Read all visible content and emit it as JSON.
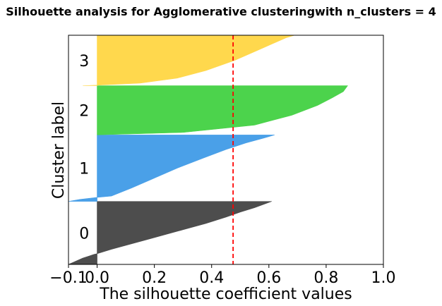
{
  "chart_data": {
    "type": "area",
    "title": "Silhouette analysis for Agglomerative clusteringwith n_clusters = 4",
    "xlabel": "The silhouette coefficient values",
    "ylabel": "Cluster label",
    "xlim": [
      -0.1,
      1.0
    ],
    "ylim": [
      0,
      1000
    ],
    "xticks": [
      -0.1,
      0.0,
      0.2,
      0.4,
      0.6,
      0.8,
      1.0
    ],
    "xtick_labels": [
      "−0.1",
      "0.0",
      "0.2",
      "0.4",
      "0.6",
      "0.8",
      "1.0"
    ],
    "yticks": [],
    "grid": false,
    "legend": "none",
    "average_silhouette": 0.475,
    "average_line_color": "#ff0000",
    "clusters": [
      {
        "label": "0",
        "color": "#4d4d4d",
        "y_start": 0,
        "y_end": 275,
        "profile": [
          [
            0,
            -0.1
          ],
          [
            0.1,
            -0.05
          ],
          [
            0.16,
            -0.01
          ],
          [
            0.17,
            0.0
          ],
          [
            0.24,
            0.05
          ],
          [
            0.4,
            0.18
          ],
          [
            0.55,
            0.3
          ],
          [
            0.65,
            0.38
          ],
          [
            0.75,
            0.45
          ],
          [
            0.83,
            0.5
          ],
          [
            0.9,
            0.55
          ],
          [
            0.95,
            0.58
          ],
          [
            1,
            0.61
          ]
        ]
      },
      {
        "label": "1",
        "color": "#4aa0e8",
        "y_start": 275,
        "y_end": 565,
        "profile": [
          [
            0,
            -0.1
          ],
          [
            0.03,
            -0.06
          ],
          [
            0.06,
            0.0
          ],
          [
            0.08,
            0.05
          ],
          [
            0.2,
            0.12
          ],
          [
            0.35,
            0.2
          ],
          [
            0.5,
            0.28
          ],
          [
            0.65,
            0.37
          ],
          [
            0.78,
            0.45
          ],
          [
            0.88,
            0.52
          ],
          [
            0.95,
            0.58
          ],
          [
            1,
            0.62
          ]
        ]
      },
      {
        "label": "2",
        "color": "#4cd34c",
        "y_start": 565,
        "y_end": 780,
        "profile": [
          [
            0,
            0.0
          ],
          [
            0.05,
            0.3
          ],
          [
            0.2,
            0.55
          ],
          [
            0.4,
            0.68
          ],
          [
            0.6,
            0.77
          ],
          [
            0.75,
            0.82
          ],
          [
            0.88,
            0.86
          ],
          [
            1,
            0.875
          ]
        ]
      },
      {
        "label": "3",
        "color": "#ffd84d",
        "y_start": 780,
        "y_end": 1000,
        "profile": [
          [
            0,
            -0.05
          ],
          [
            0.01,
            0.0
          ],
          [
            0.05,
            0.15
          ],
          [
            0.15,
            0.28
          ],
          [
            0.3,
            0.38
          ],
          [
            0.5,
            0.48
          ],
          [
            0.7,
            0.56
          ],
          [
            0.85,
            0.62
          ],
          [
            0.95,
            0.66
          ],
          [
            1,
            0.69
          ]
        ]
      }
    ]
  }
}
